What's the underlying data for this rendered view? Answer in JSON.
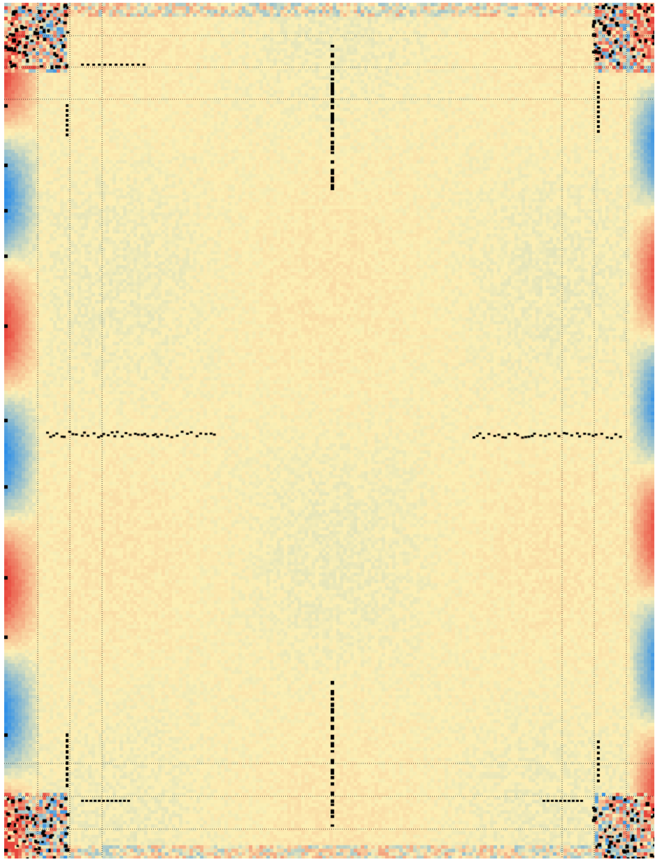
{
  "heatmap": {
    "base_color": "#fcefb4",
    "hot_color": "#e8453c",
    "cold_color": "#2e8fe8",
    "defect_color": "#000000",
    "grid_color": "#222222",
    "grid_style": "dotted"
  }
}
